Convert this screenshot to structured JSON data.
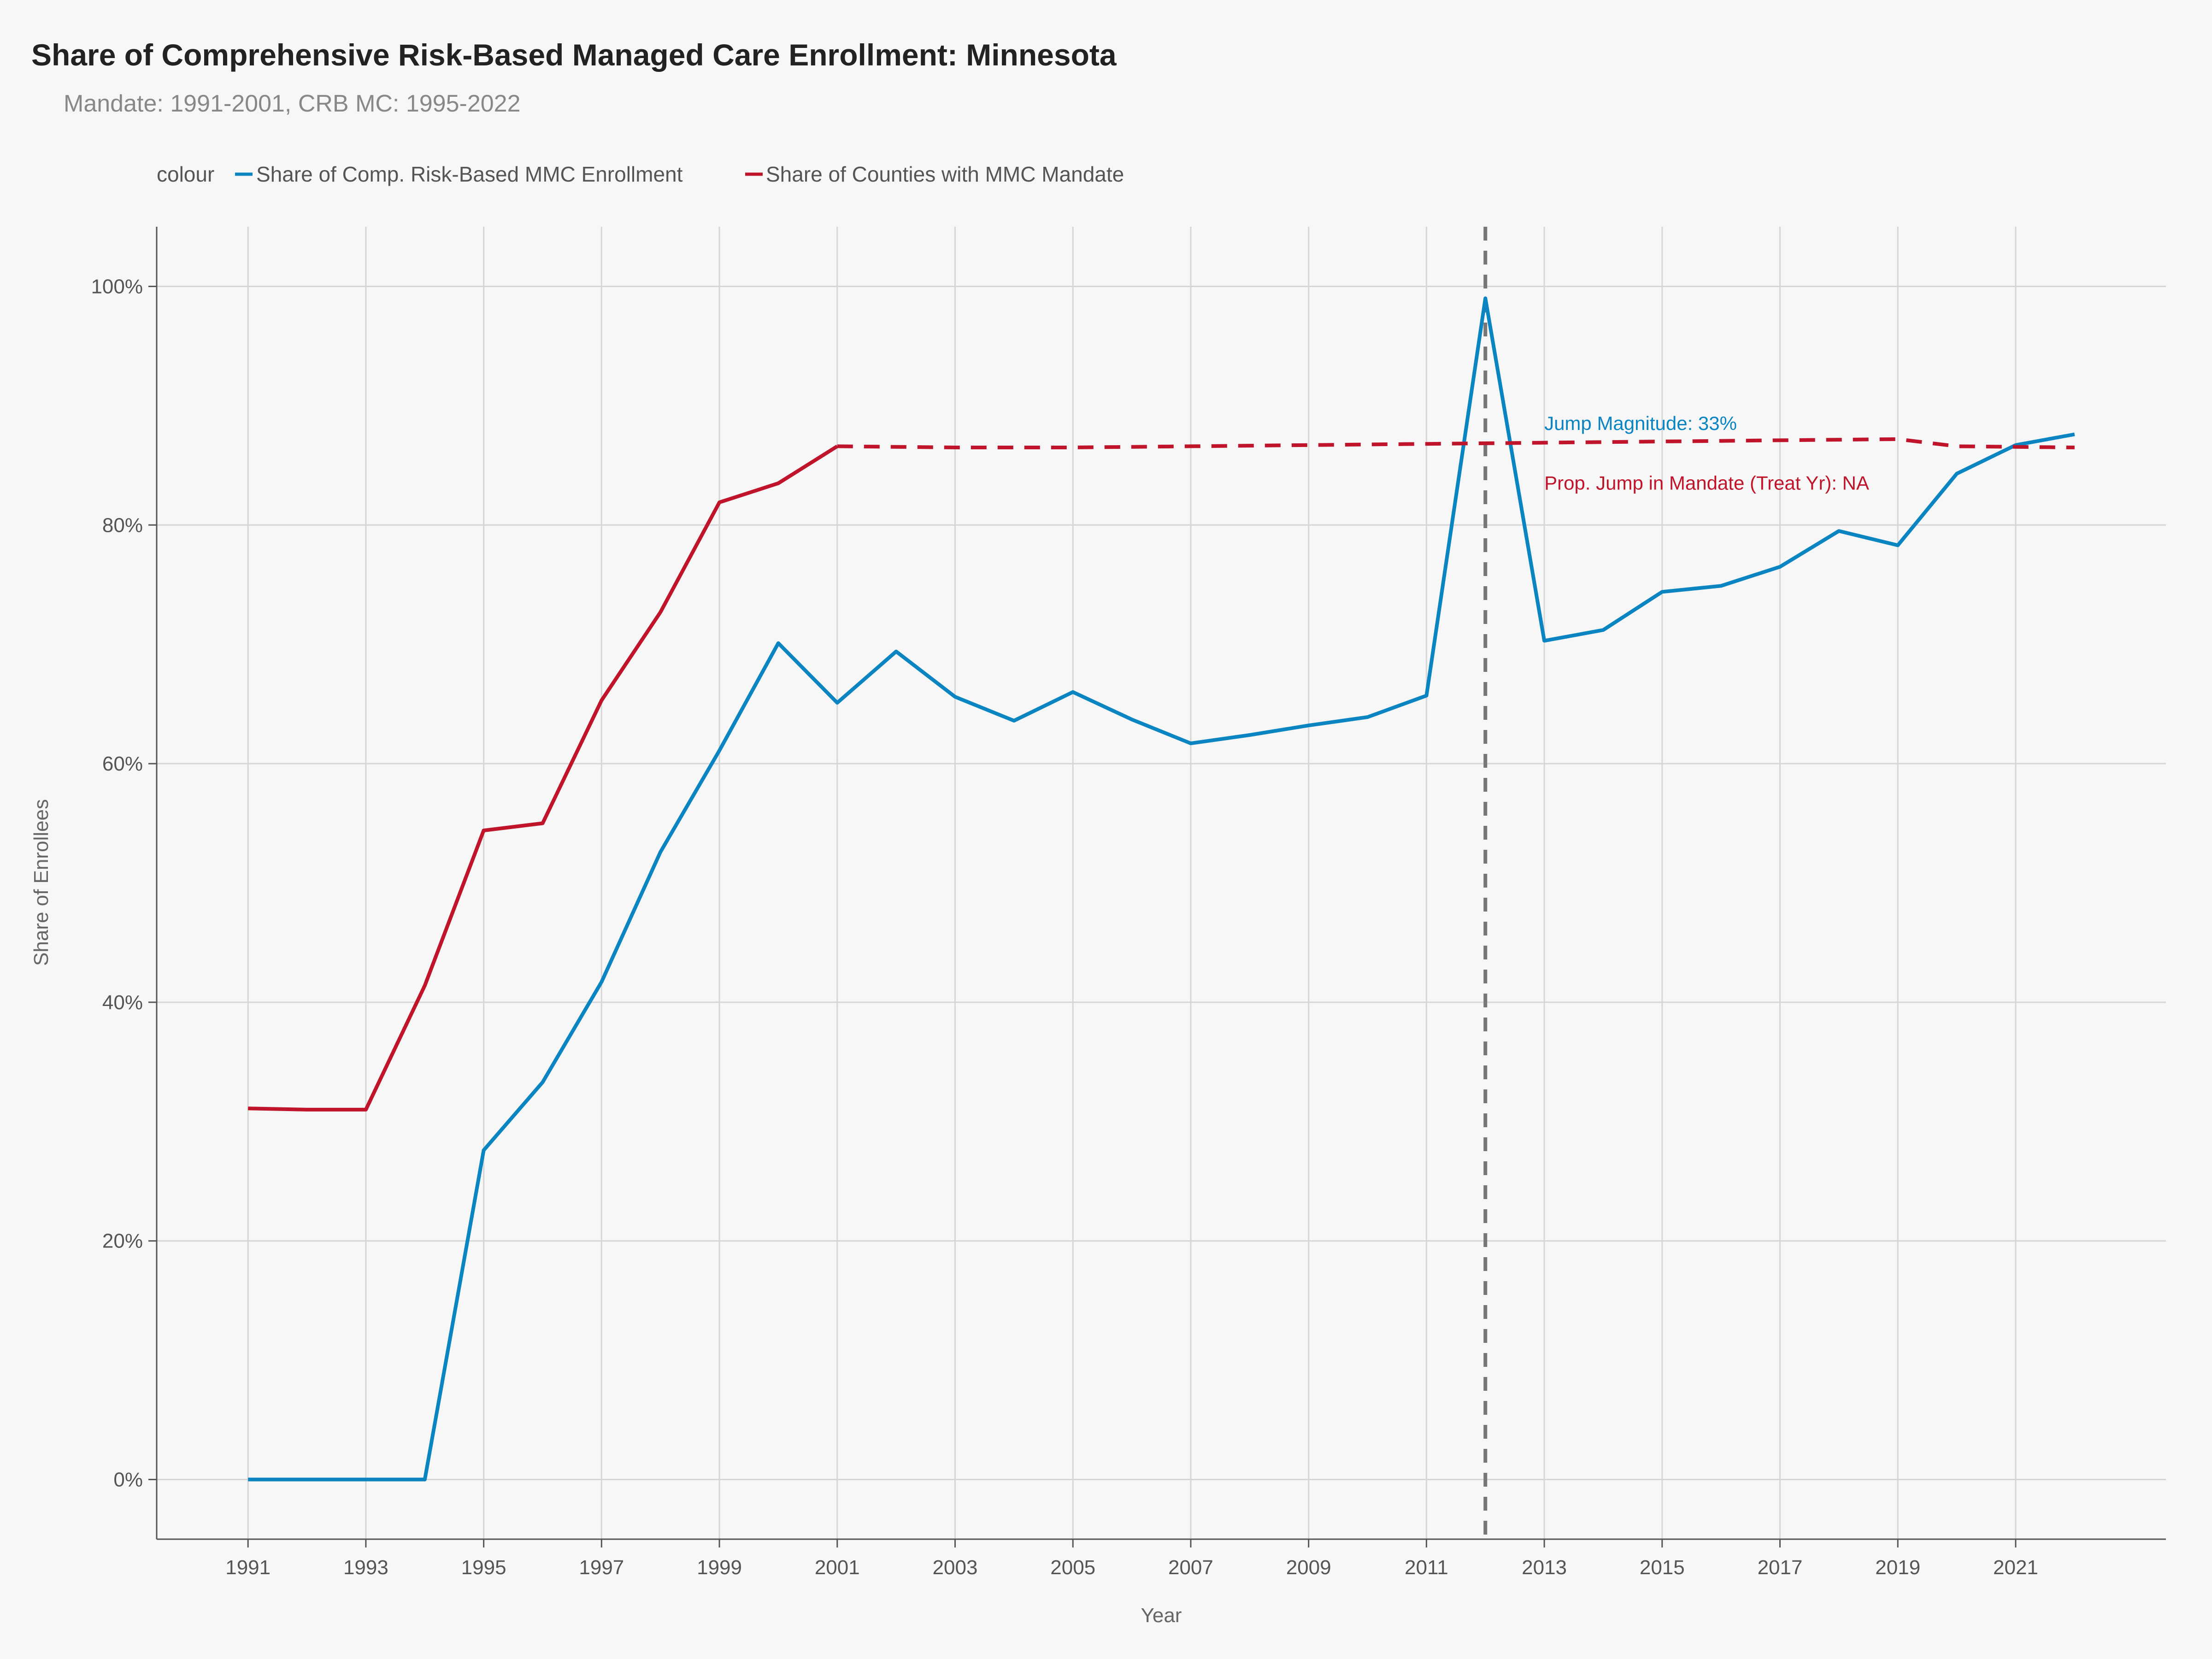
{
  "chart_data": {
    "type": "line",
    "title": "Share of Comprehensive Risk-Based Managed Care Enrollment: Minnesota",
    "subtitle": "Mandate: 1991-2001, CRB MC: 1995-2022",
    "xlabel": "Year",
    "ylabel": "Share of Enrollees",
    "xlim": [
      1989.45,
      2023.55
    ],
    "ylim": [
      -0.05,
      1.05
    ],
    "x_ticks": [
      1991,
      1993,
      1995,
      1997,
      1999,
      2001,
      2003,
      2005,
      2007,
      2009,
      2011,
      2013,
      2015,
      2017,
      2019,
      2021
    ],
    "y_ticks": [
      0,
      0.2,
      0.4,
      0.6,
      0.8,
      1.0
    ],
    "y_tick_labels": [
      "0%",
      "20%",
      "40%",
      "60%",
      "80%",
      "100%"
    ],
    "grid": true,
    "legend_title": "colour",
    "legend_position": "top-left",
    "vline": {
      "x": 2012,
      "style": "dashed",
      "color": "#777777"
    },
    "series": [
      {
        "name": "Share of Comp. Risk-Based MMC Enrollment",
        "color": "#0a85c2",
        "style": "solid",
        "x": [
          1991,
          1992,
          1993,
          1994,
          1995,
          1996,
          1997,
          1998,
          1999,
          2000,
          2001,
          2002,
          2003,
          2004,
          2005,
          2006,
          2007,
          2008,
          2009,
          2010,
          2011,
          2012,
          2013,
          2014,
          2015,
          2016,
          2017,
          2018,
          2019,
          2020,
          2021,
          2022
        ],
        "values": [
          0,
          0,
          0,
          0,
          0.276,
          0.333,
          0.417,
          0.526,
          0.611,
          0.701,
          0.651,
          0.694,
          0.656,
          0.636,
          0.66,
          0.637,
          0.617,
          0.624,
          0.632,
          0.639,
          0.657,
          0.99,
          0.703,
          0.712,
          0.744,
          0.749,
          0.765,
          0.795,
          0.783,
          0.843,
          0.867,
          0.876
        ]
      },
      {
        "name": "Share of Counties with MMC Mandate",
        "color": "#c0142b",
        "style": "solid",
        "x": [
          1991,
          1992,
          1993,
          1994,
          1995,
          1996,
          1997,
          1998,
          1999,
          2000,
          2001
        ],
        "values": [
          0.311,
          0.31,
          0.31,
          0.414,
          0.544,
          0.55,
          0.653,
          0.727,
          0.819,
          0.835,
          0.866
        ]
      },
      {
        "color": "#c0142b",
        "style": "dashed",
        "x": [
          2001,
          2003,
          2005,
          2007,
          2009,
          2011,
          2013,
          2015,
          2017,
          2019,
          2020,
          2022
        ],
        "values": [
          0.866,
          0.865,
          0.865,
          0.866,
          0.867,
          0.868,
          0.869,
          0.87,
          0.871,
          0.872,
          0.866,
          0.865
        ]
      }
    ],
    "annotations": [
      {
        "text": "Jump Magnitude: 33%",
        "x": 2013,
        "y": 0.885,
        "color": "#0a85c2"
      },
      {
        "text": "Prop. Jump in Mandate (Treat Yr): NA",
        "x": 2013,
        "y": 0.835,
        "color": "#c0142b"
      }
    ]
  }
}
